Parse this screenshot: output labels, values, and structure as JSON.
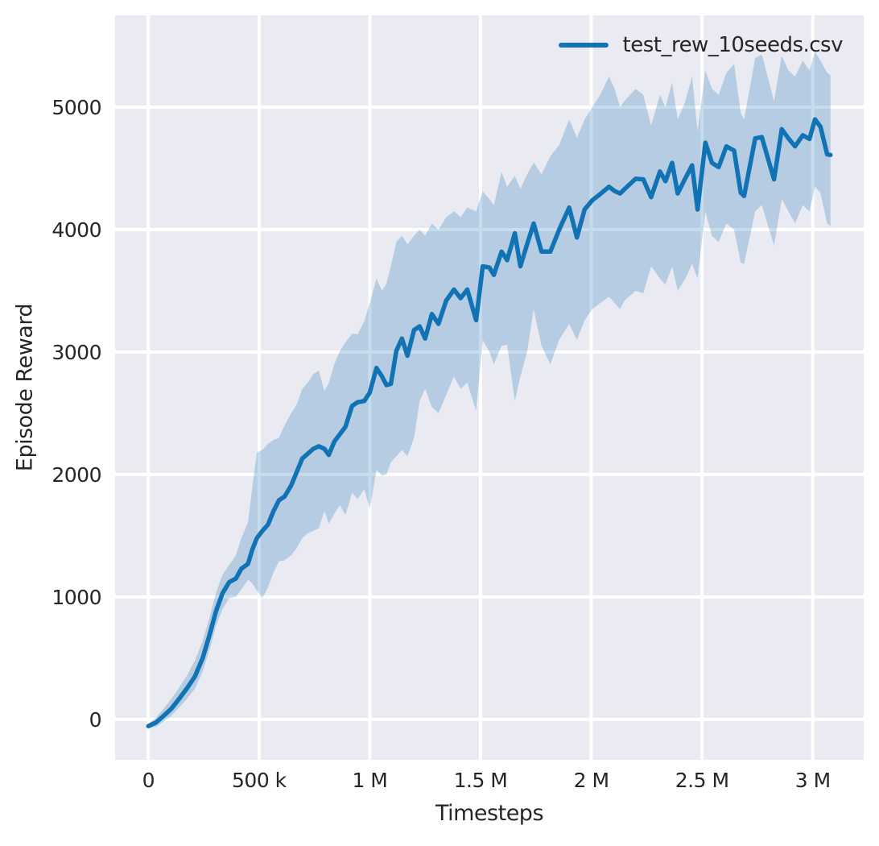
{
  "figure": {
    "background": "#ffffff",
    "plot_background": "#eaeaf2",
    "grid_color": "#ffffff",
    "text_color": "#262626"
  },
  "chart_data": {
    "type": "line",
    "title": "",
    "xlabel": "Timesteps",
    "ylabel": "Episode Reward",
    "grid": true,
    "legend_position": "upper right",
    "xlim": [
      -150000,
      3230000
    ],
    "ylim": [
      -330,
      5750
    ],
    "x_ticks": {
      "values": [
        0,
        500000,
        1000000,
        1500000,
        2000000,
        2500000,
        3000000
      ],
      "labels": [
        "0",
        "500 k",
        "1 M",
        "1.5 M",
        "2 M",
        "2.5 M",
        "3 M"
      ]
    },
    "y_ticks": {
      "values": [
        0,
        1000,
        2000,
        3000,
        4000,
        5000
      ],
      "labels": [
        "0",
        "1000",
        "2000",
        "3000",
        "4000",
        "5000"
      ]
    },
    "series": [
      {
        "name": "test_rew_10seeds.csv",
        "color": "#1173b4",
        "band_color": "rgba(23,115,180,0.25)",
        "line_width": 5.5,
        "points_format": [
          "timesteps",
          "mean_episode_reward",
          "band_low",
          "band_high"
        ],
        "points": [
          [
            0,
            -55,
            -75,
            -35
          ],
          [
            35000,
            -25,
            -60,
            15
          ],
          [
            70000,
            30,
            -15,
            90
          ],
          [
            105000,
            90,
            30,
            170
          ],
          [
            140000,
            170,
            100,
            260
          ],
          [
            175000,
            255,
            170,
            360
          ],
          [
            210000,
            350,
            250,
            480
          ],
          [
            245000,
            500,
            390,
            640
          ],
          [
            275000,
            680,
            560,
            820
          ],
          [
            305000,
            880,
            760,
            1030
          ],
          [
            335000,
            1030,
            900,
            1180
          ],
          [
            365000,
            1120,
            990,
            1260
          ],
          [
            395000,
            1150,
            1000,
            1340
          ],
          [
            420000,
            1230,
            1060,
            1480
          ],
          [
            450000,
            1270,
            1140,
            1610
          ],
          [
            470000,
            1390,
            1110,
            1900
          ],
          [
            490000,
            1480,
            1050,
            2180
          ],
          [
            515000,
            1540,
            990,
            2200
          ],
          [
            540000,
            1590,
            1080,
            2250
          ],
          [
            565000,
            1700,
            1200,
            2280
          ],
          [
            590000,
            1790,
            1290,
            2300
          ],
          [
            615000,
            1820,
            1300,
            2400
          ],
          [
            645000,
            1910,
            1340,
            2500
          ],
          [
            670000,
            2020,
            1400,
            2570
          ],
          [
            695000,
            2130,
            1480,
            2700
          ],
          [
            720000,
            2170,
            1520,
            2750
          ],
          [
            745000,
            2210,
            1540,
            2820
          ],
          [
            770000,
            2230,
            1560,
            2850
          ],
          [
            795000,
            2210,
            1700,
            2680
          ],
          [
            815000,
            2160,
            1600,
            2750
          ],
          [
            840000,
            2270,
            1680,
            2900
          ],
          [
            865000,
            2330,
            1750,
            3010
          ],
          [
            890000,
            2390,
            1670,
            3080
          ],
          [
            920000,
            2560,
            1850,
            3150
          ],
          [
            945000,
            2590,
            1800,
            3145
          ],
          [
            975000,
            2600,
            1880,
            3250
          ],
          [
            1000000,
            2670,
            1720,
            3400
          ],
          [
            1030000,
            2870,
            2040,
            3600
          ],
          [
            1055000,
            2800,
            1990,
            3500
          ],
          [
            1075000,
            2730,
            2000,
            3560
          ],
          [
            1095000,
            2740,
            2100,
            3700
          ],
          [
            1120000,
            3010,
            2150,
            3900
          ],
          [
            1145000,
            3110,
            2200,
            3950
          ],
          [
            1170000,
            2970,
            2150,
            3880
          ],
          [
            1200000,
            3180,
            2300,
            3950
          ],
          [
            1225000,
            3210,
            2600,
            4000
          ],
          [
            1250000,
            3110,
            2700,
            3950
          ],
          [
            1280000,
            3310,
            2550,
            4050
          ],
          [
            1310000,
            3230,
            2500,
            4000
          ],
          [
            1345000,
            3420,
            2650,
            4100
          ],
          [
            1380000,
            3510,
            2800,
            4150
          ],
          [
            1410000,
            3440,
            2700,
            4100
          ],
          [
            1440000,
            3510,
            2750,
            4180
          ],
          [
            1480000,
            3260,
            2520,
            4150
          ],
          [
            1510000,
            3700,
            3100,
            4310
          ],
          [
            1540000,
            3690,
            3000,
            4250
          ],
          [
            1560000,
            3630,
            2900,
            4200
          ],
          [
            1595000,
            3820,
            3050,
            4470
          ],
          [
            1620000,
            3750,
            3060,
            4350
          ],
          [
            1655000,
            3970,
            2600,
            4440
          ],
          [
            1680000,
            3700,
            2800,
            4330
          ],
          [
            1710000,
            3880,
            3000,
            4450
          ],
          [
            1740000,
            4050,
            3350,
            4550
          ],
          [
            1775000,
            3820,
            3050,
            4450
          ],
          [
            1815000,
            3820,
            2900,
            4600
          ],
          [
            1855000,
            4000,
            3100,
            4690
          ],
          [
            1900000,
            4180,
            3230,
            4900
          ],
          [
            1935000,
            3935,
            3100,
            4750
          ],
          [
            1970000,
            4165,
            3260,
            4900
          ],
          [
            2005000,
            4240,
            3350,
            5000
          ],
          [
            2040000,
            4290,
            3400,
            5100
          ],
          [
            2080000,
            4350,
            3450,
            5250
          ],
          [
            2105000,
            4315,
            3400,
            5150
          ],
          [
            2130000,
            4295,
            3350,
            5000
          ],
          [
            2150000,
            4330,
            3420,
            5050
          ],
          [
            2200000,
            4415,
            3500,
            5150
          ],
          [
            2235000,
            4410,
            3480,
            5100
          ],
          [
            2270000,
            4265,
            3700,
            4850
          ],
          [
            2310000,
            4475,
            3600,
            5100
          ],
          [
            2335000,
            4395,
            3550,
            5000
          ],
          [
            2365000,
            4545,
            3700,
            5200
          ],
          [
            2390000,
            4295,
            3500,
            4900
          ],
          [
            2425000,
            4420,
            3600,
            5050
          ],
          [
            2455000,
            4525,
            3720,
            5250
          ],
          [
            2480000,
            4165,
            3600,
            4800
          ],
          [
            2515000,
            4710,
            4150,
            5300
          ],
          [
            2545000,
            4545,
            3950,
            5150
          ],
          [
            2575000,
            4510,
            3900,
            5100
          ],
          [
            2610000,
            4680,
            4050,
            5280
          ],
          [
            2645000,
            4645,
            4000,
            5350
          ],
          [
            2675000,
            4300,
            3730,
            4950
          ],
          [
            2690000,
            4275,
            3720,
            4900
          ],
          [
            2740000,
            4745,
            4150,
            5400
          ],
          [
            2770000,
            4755,
            4200,
            5430
          ],
          [
            2825000,
            4410,
            3870,
            5050
          ],
          [
            2860000,
            4820,
            4250,
            5420
          ],
          [
            2890000,
            4745,
            4150,
            5300
          ],
          [
            2920000,
            4680,
            4050,
            5250
          ],
          [
            2955000,
            4770,
            4200,
            5380
          ],
          [
            2985000,
            4740,
            4150,
            5300
          ],
          [
            3010000,
            4900,
            4350,
            5450
          ],
          [
            3035000,
            4840,
            4300,
            5380
          ],
          [
            3065000,
            4615,
            4050,
            5280
          ],
          [
            3080000,
            4610,
            4030,
            5260
          ]
        ]
      }
    ]
  }
}
